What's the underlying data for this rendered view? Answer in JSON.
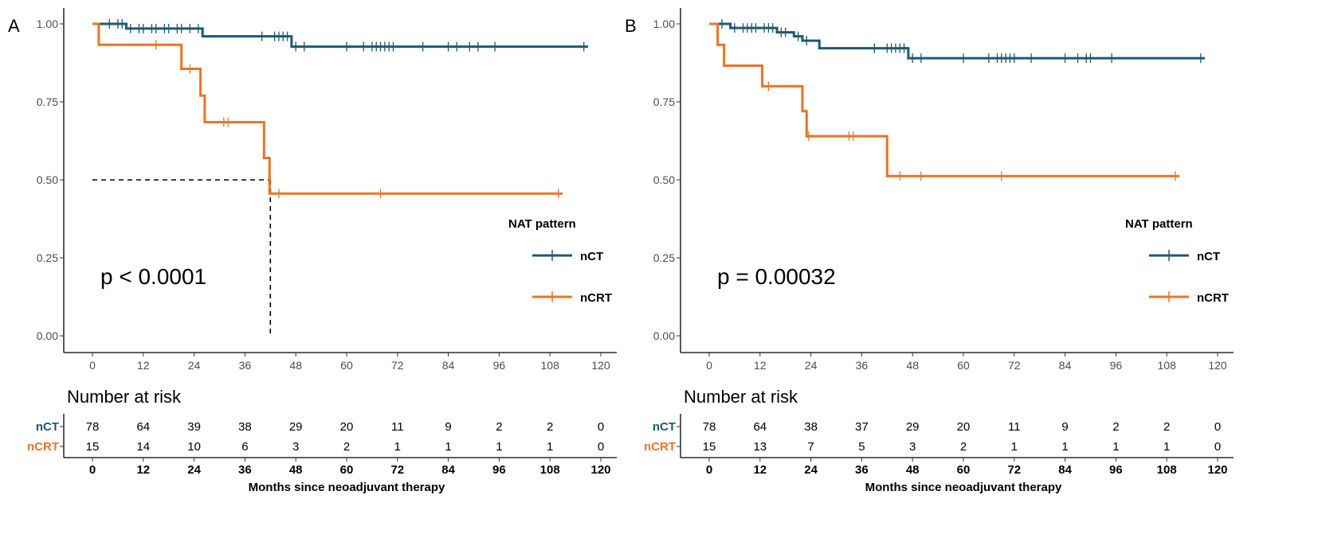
{
  "colors": {
    "nCT": "#1c5a73",
    "nCRT": "#f07222"
  },
  "chart_data": [
    {
      "panel": "A",
      "type": "line",
      "subtype": "kaplan-meier",
      "p_value": "p < 0.0001",
      "xlim": [
        0,
        120
      ],
      "ylim": [
        0,
        1
      ],
      "xticks": [
        "0",
        "12",
        "24",
        "36",
        "48",
        "60",
        "72",
        "84",
        "96",
        "108",
        "120"
      ],
      "yticks": [
        "0.00",
        "0.25",
        "0.50",
        "0.75",
        "1.00"
      ],
      "legend": {
        "title": "NAT pattern",
        "placement": "right",
        "entries": [
          "nCT",
          "nCRT"
        ]
      },
      "median_line": {
        "y": 0.5,
        "x": 42
      },
      "series": [
        {
          "name": "nCT",
          "steps": [
            [
              0,
              1.0
            ],
            [
              8,
              0.985
            ],
            [
              26,
              0.96
            ],
            [
              47,
              0.927
            ],
            [
              117,
              0.927
            ]
          ],
          "censors": [
            [
              4,
              1.0
            ],
            [
              6,
              1.0
            ],
            [
              7,
              1.0
            ],
            [
              9,
              0.985
            ],
            [
              11,
              0.985
            ],
            [
              12,
              0.985
            ],
            [
              14,
              0.985
            ],
            [
              15,
              0.985
            ],
            [
              17,
              0.985
            ],
            [
              18,
              0.985
            ],
            [
              20,
              0.985
            ],
            [
              21,
              0.985
            ],
            [
              23,
              0.985
            ],
            [
              25,
              0.985
            ],
            [
              40,
              0.96
            ],
            [
              43,
              0.96
            ],
            [
              44,
              0.96
            ],
            [
              45,
              0.96
            ],
            [
              46,
              0.96
            ],
            [
              48,
              0.927
            ],
            [
              50,
              0.927
            ],
            [
              60,
              0.927
            ],
            [
              64,
              0.927
            ],
            [
              66,
              0.927
            ],
            [
              67,
              0.927
            ],
            [
              68,
              0.927
            ],
            [
              69,
              0.927
            ],
            [
              70,
              0.927
            ],
            [
              71,
              0.927
            ],
            [
              78,
              0.927
            ],
            [
              84,
              0.927
            ],
            [
              86,
              0.927
            ],
            [
              89,
              0.927
            ],
            [
              91,
              0.927
            ],
            [
              95,
              0.927
            ],
            [
              116,
              0.927
            ]
          ]
        },
        {
          "name": "nCRT",
          "steps": [
            [
              0,
              1.0
            ],
            [
              1.5,
              0.933
            ],
            [
              21,
              0.856
            ],
            [
              25.5,
              0.77
            ],
            [
              26.5,
              0.685
            ],
            [
              40.5,
              0.57
            ],
            [
              41.8,
              0.456
            ],
            [
              111,
              0.456
            ]
          ],
          "censors": [
            [
              15,
              0.933
            ],
            [
              23,
              0.856
            ],
            [
              31,
              0.685
            ],
            [
              32,
              0.685
            ],
            [
              44,
              0.456
            ],
            [
              68,
              0.456
            ],
            [
              110,
              0.456
            ]
          ]
        }
      ],
      "risk_table": {
        "title": "Number at risk",
        "xlabel": "Months since neoadjuvant therapy",
        "rows": [
          {
            "name": "nCT",
            "values": [
              "78",
              "64",
              "39",
              "38",
              "29",
              "20",
              "11",
              "9",
              "2",
              "2",
              "0"
            ]
          },
          {
            "name": "nCRT",
            "values": [
              "15",
              "14",
              "10",
              "6",
              "3",
              "2",
              "1",
              "1",
              "1",
              "1",
              "0"
            ]
          }
        ]
      }
    },
    {
      "panel": "B",
      "type": "line",
      "subtype": "kaplan-meier",
      "p_value": "p = 0.00032",
      "xlim": [
        0,
        120
      ],
      "ylim": [
        0,
        1
      ],
      "xticks": [
        "0",
        "12",
        "24",
        "36",
        "48",
        "60",
        "72",
        "84",
        "96",
        "108",
        "120"
      ],
      "yticks": [
        "0.00",
        "0.25",
        "0.50",
        "0.75",
        "1.00"
      ],
      "legend": {
        "title": "NAT pattern",
        "placement": "right",
        "entries": [
          "nCT",
          "nCRT"
        ]
      },
      "series": [
        {
          "name": "nCT",
          "steps": [
            [
              0,
              1.0
            ],
            [
              5,
              0.987
            ],
            [
              16,
              0.973
            ],
            [
              20,
              0.96
            ],
            [
              22,
              0.946
            ],
            [
              26,
              0.922
            ],
            [
              47,
              0.89
            ],
            [
              117,
              0.89
            ]
          ],
          "censors": [
            [
              3,
              1.0
            ],
            [
              6,
              0.987
            ],
            [
              8,
              0.987
            ],
            [
              9,
              0.987
            ],
            [
              10,
              0.987
            ],
            [
              11,
              0.987
            ],
            [
              13,
              0.987
            ],
            [
              14,
              0.987
            ],
            [
              15,
              0.987
            ],
            [
              17,
              0.973
            ],
            [
              18,
              0.973
            ],
            [
              21,
              0.96
            ],
            [
              23,
              0.946
            ],
            [
              39,
              0.922
            ],
            [
              42,
              0.922
            ],
            [
              43,
              0.922
            ],
            [
              44,
              0.922
            ],
            [
              45,
              0.922
            ],
            [
              46,
              0.922
            ],
            [
              48,
              0.89
            ],
            [
              50,
              0.89
            ],
            [
              60,
              0.89
            ],
            [
              66,
              0.89
            ],
            [
              68,
              0.89
            ],
            [
              69,
              0.89
            ],
            [
              70,
              0.89
            ],
            [
              71,
              0.89
            ],
            [
              72,
              0.89
            ],
            [
              76,
              0.89
            ],
            [
              84,
              0.89
            ],
            [
              87,
              0.89
            ],
            [
              89,
              0.89
            ],
            [
              90,
              0.89
            ],
            [
              95,
              0.89
            ],
            [
              116,
              0.89
            ]
          ]
        },
        {
          "name": "nCRT",
          "steps": [
            [
              0,
              1.0
            ],
            [
              2,
              0.933
            ],
            [
              3.5,
              0.866
            ],
            [
              12.5,
              0.8
            ],
            [
              22,
              0.72
            ],
            [
              23,
              0.64
            ],
            [
              42,
              0.512
            ],
            [
              111,
              0.512
            ]
          ],
          "censors": [
            [
              14,
              0.8
            ],
            [
              23.5,
              0.64
            ],
            [
              33,
              0.64
            ],
            [
              34,
              0.64
            ],
            [
              45,
              0.512
            ],
            [
              50,
              0.512
            ],
            [
              69,
              0.512
            ],
            [
              110,
              0.512
            ]
          ]
        }
      ],
      "risk_table": {
        "title": "Number at risk",
        "xlabel": "Months since neoadjuvant therapy",
        "rows": [
          {
            "name": "nCT",
            "values": [
              "78",
              "64",
              "38",
              "37",
              "29",
              "20",
              "11",
              "9",
              "2",
              "2",
              "0"
            ]
          },
          {
            "name": "nCRT",
            "values": [
              "15",
              "13",
              "7",
              "5",
              "3",
              "2",
              "1",
              "1",
              "1",
              "1",
              "0"
            ]
          }
        ]
      }
    }
  ]
}
